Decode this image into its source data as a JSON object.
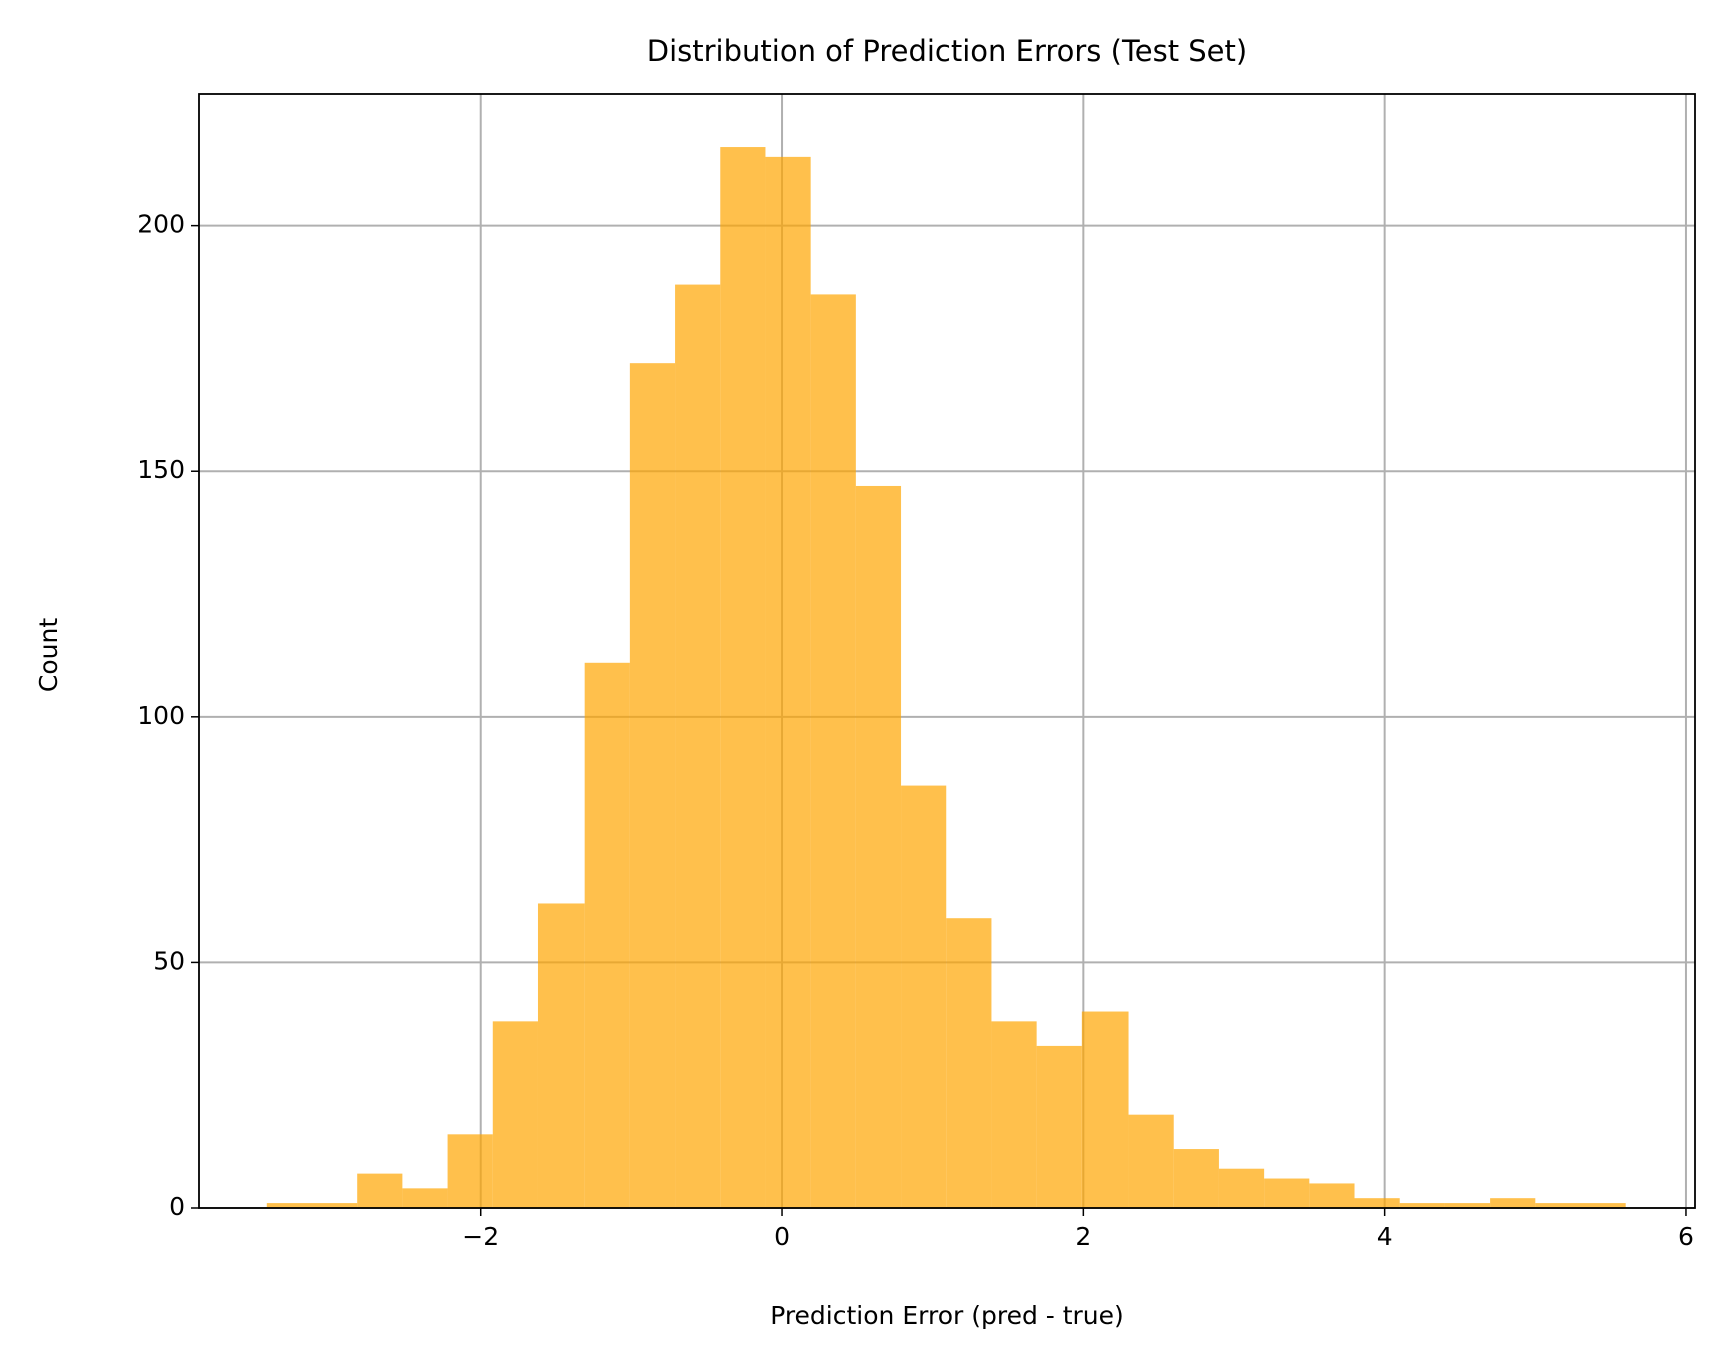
{
  "chart_data": {
    "type": "histogram",
    "title": "Distribution of Prediction Errors (Test Set)",
    "x_label": "Prediction Error (pred - true)",
    "y_label": "Count",
    "bins": [
      -3.42,
      -3.12,
      -2.82,
      -2.52,
      -2.22,
      -1.92,
      -1.62,
      -1.31,
      -1.01,
      -0.71,
      -0.41,
      -0.11,
      0.19,
      0.49,
      0.79,
      1.09,
      1.39,
      1.69,
      1.99,
      2.3,
      2.6,
      2.9,
      3.2,
      3.5,
      3.8,
      4.1,
      4.4,
      4.7,
      5.0,
      5.3,
      5.6
    ],
    "counts": [
      1,
      1,
      7,
      4,
      15,
      38,
      62,
      111,
      172,
      188,
      216,
      214,
      186,
      147,
      86,
      59,
      38,
      33,
      40,
      19,
      12,
      8,
      6,
      5,
      2,
      1,
      1,
      2,
      1,
      1
    ],
    "color": "#ffa500",
    "alpha": 0.7,
    "xlim": [
      -3.87,
      6.06
    ],
    "xticks": [
      {
        "value": -2,
        "label": "−2"
      },
      0,
      2,
      4,
      6
    ],
    "ylim": [
      0,
      226.8
    ],
    "yticks": [
      0,
      50,
      100,
      150,
      200
    ],
    "grid": true
  }
}
